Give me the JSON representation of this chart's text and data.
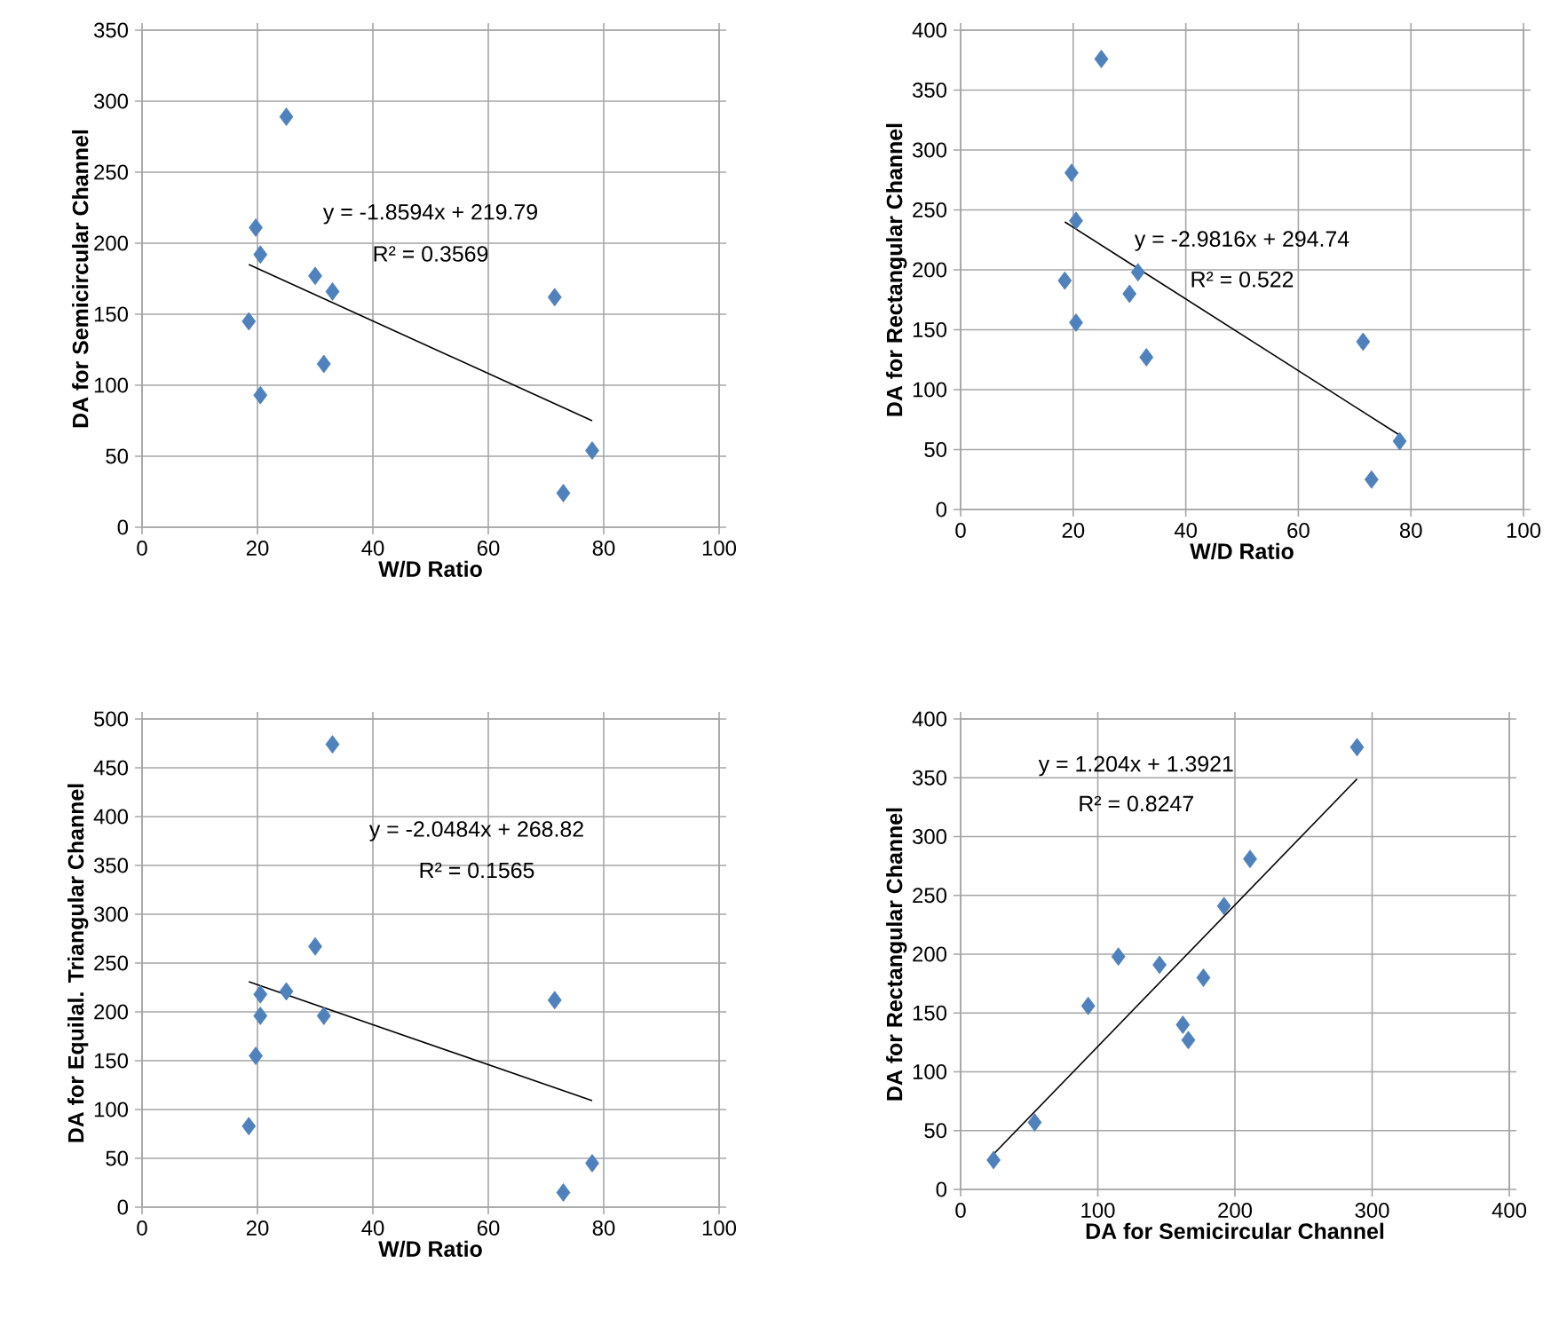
{
  "chart_data": [
    {
      "type": "scatter",
      "xlabel": "W/D Ratio",
      "ylabel": "DA for Semicircular Channel",
      "xlim": [
        0,
        100
      ],
      "xticks": [
        0,
        20,
        40,
        60,
        80,
        100
      ],
      "ylim": [
        0,
        350
      ],
      "yticks": [
        0,
        50,
        100,
        150,
        200,
        250,
        300,
        350
      ],
      "grid": true,
      "annotations": [
        "y = -1.8594x + 219.79",
        "R² = 0.3569"
      ],
      "series": [
        {
          "marker": "diamond",
          "color": "#4f81bd",
          "x": [
            18.5,
            19.7,
            20.5,
            20.5,
            25,
            30,
            31.5,
            33,
            71.5,
            73,
            78
          ],
          "values": [
            145,
            211,
            192,
            93,
            289,
            177,
            115,
            166,
            162,
            24,
            54
          ]
        },
        {
          "type": "line",
          "line_style": "solid",
          "color": "#000000",
          "x": [
            18.5,
            78
          ],
          "values": [
            185,
            75
          ]
        }
      ]
    },
    {
      "type": "scatter",
      "xlabel": "W/D Ratio",
      "ylabel": "DA for Rectangular Channel",
      "xlim": [
        0,
        100
      ],
      "xticks": [
        0,
        20,
        40,
        60,
        80,
        100
      ],
      "ylim": [
        0,
        400
      ],
      "yticks": [
        0,
        50,
        100,
        150,
        200,
        250,
        300,
        350,
        400
      ],
      "grid": true,
      "annotations": [
        "y = -2.9816x + 294.74",
        "R² = 0.522"
      ],
      "series": [
        {
          "marker": "diamond",
          "color": "#4f81bd",
          "x": [
            18.5,
            19.7,
            20.5,
            20.5,
            25,
            30,
            31.5,
            33,
            71.5,
            73,
            78
          ],
          "values": [
            191,
            281,
            241,
            156,
            376,
            180,
            198,
            127,
            140,
            25,
            57
          ]
        },
        {
          "type": "line",
          "line_style": "solid",
          "color": "#000000",
          "x": [
            18.5,
            78
          ],
          "values": [
            240,
            62
          ]
        }
      ]
    },
    {
      "type": "scatter",
      "xlabel": "W/D Ratio",
      "ylabel": "DA for Equilal. Triangular Channel",
      "xlim": [
        0,
        100
      ],
      "xticks": [
        0,
        20,
        40,
        60,
        80,
        100
      ],
      "ylim": [
        0,
        500
      ],
      "yticks": [
        0,
        50,
        100,
        150,
        200,
        250,
        300,
        350,
        400,
        450,
        500
      ],
      "grid": true,
      "annotations": [
        "y = -2.0484x + 268.82",
        "R² = 0.1565"
      ],
      "series": [
        {
          "marker": "diamond",
          "color": "#4f81bd",
          "x": [
            18.5,
            19.7,
            20.5,
            20.5,
            25,
            30,
            31.5,
            33,
            71.5,
            73,
            78
          ],
          "values": [
            83,
            155,
            218,
            196,
            221,
            267,
            196,
            474,
            212,
            15,
            45
          ]
        },
        {
          "type": "line",
          "line_style": "solid",
          "color": "#000000",
          "x": [
            18.5,
            78
          ],
          "values": [
            231,
            109
          ]
        }
      ]
    },
    {
      "type": "scatter",
      "xlabel": "DA for Semicircular Channel",
      "ylabel": "DA for Rectangular Channel",
      "xlim": [
        0,
        400
      ],
      "xticks": [
        0,
        100,
        200,
        300,
        400
      ],
      "ylim": [
        0,
        400
      ],
      "yticks": [
        0,
        50,
        100,
        150,
        200,
        250,
        300,
        350,
        400
      ],
      "grid": true,
      "annotations": [
        "y = 1.204x + 1.3921",
        "R² = 0.8247"
      ],
      "series": [
        {
          "marker": "diamond",
          "color": "#4f81bd",
          "x": [
            145,
            211,
            192,
            93,
            289,
            177,
            115,
            166,
            162,
            24,
            54
          ],
          "values": [
            191,
            281,
            241,
            156,
            376,
            180,
            198,
            127,
            140,
            25,
            57
          ]
        },
        {
          "type": "line",
          "line_style": "solid",
          "color": "#000000",
          "x": [
            24,
            289
          ],
          "values": [
            30,
            349
          ]
        }
      ]
    }
  ]
}
